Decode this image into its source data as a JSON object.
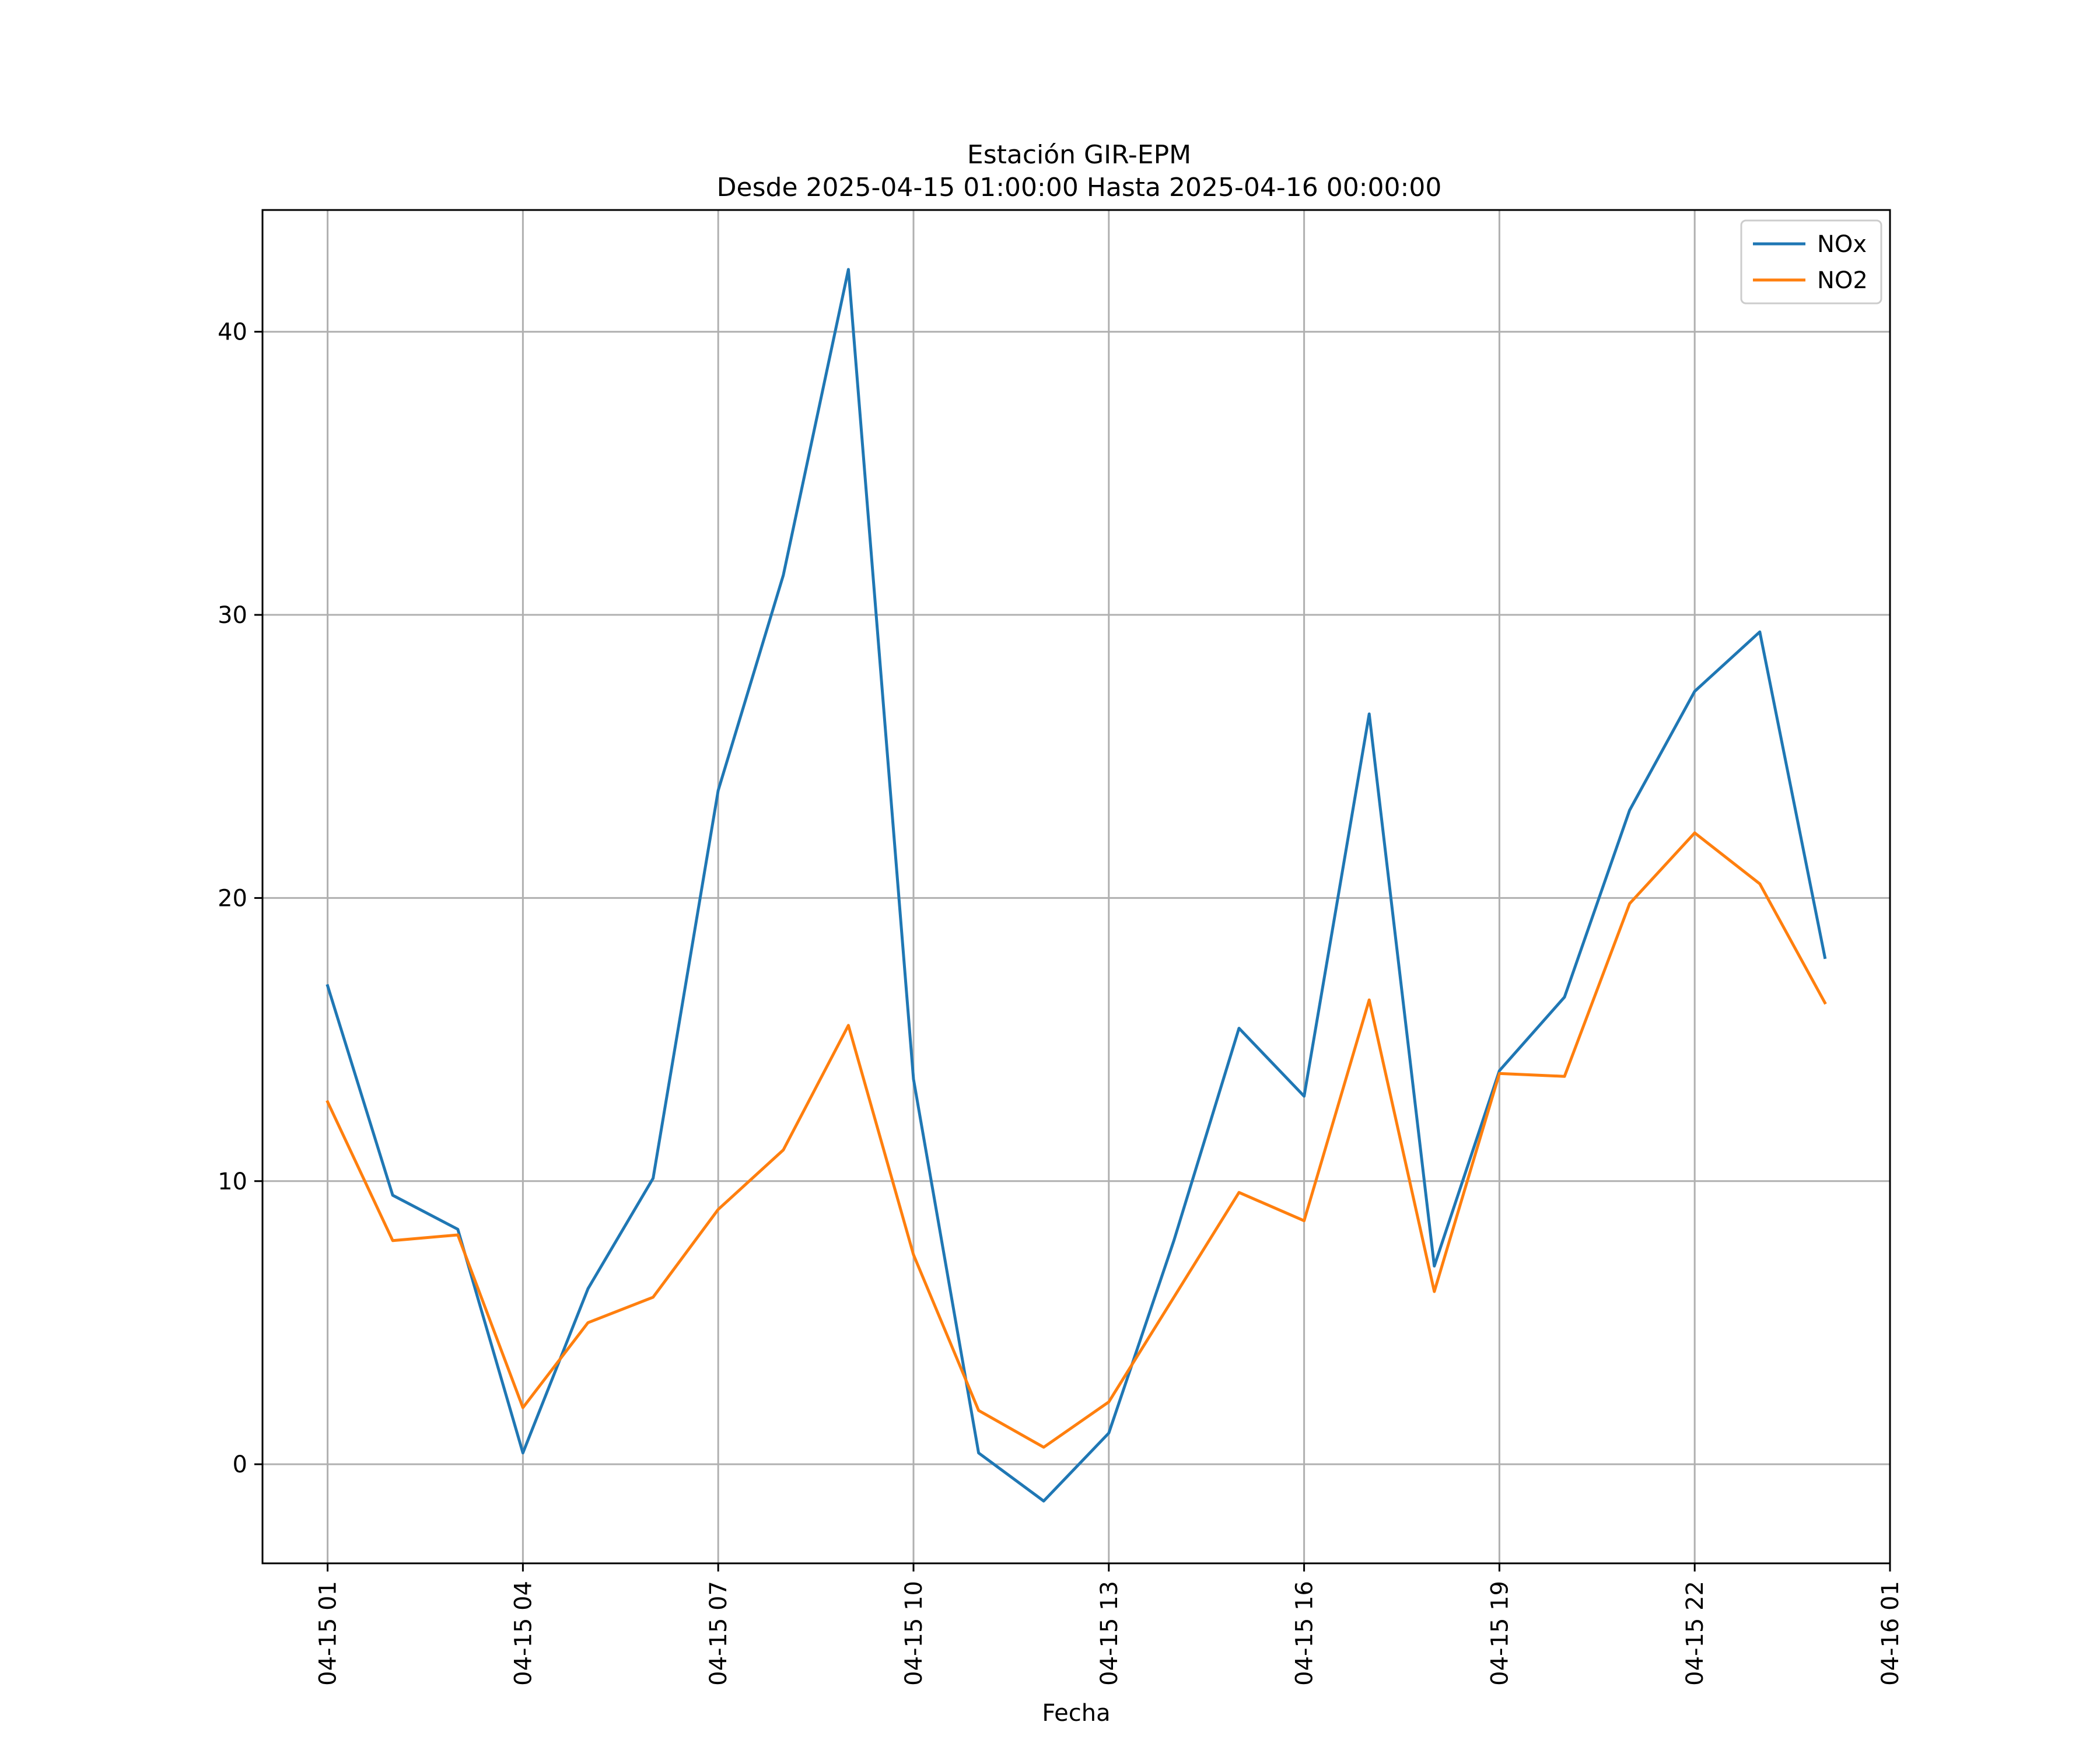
{
  "chart_data": {
    "type": "line",
    "title": "Estación GIR-EPM",
    "subtitle": "Desde 2025-04-15 01:00:00 Hasta 2025-04-16 00:00:00",
    "xlabel": "Fecha",
    "ylabel": "",
    "x": [
      "2025-04-15 01:00",
      "2025-04-15 02:00",
      "2025-04-15 03:00",
      "2025-04-15 04:00",
      "2025-04-15 05:00",
      "2025-04-15 06:00",
      "2025-04-15 07:00",
      "2025-04-15 08:00",
      "2025-04-15 09:00",
      "2025-04-15 10:00",
      "2025-04-15 11:00",
      "2025-04-15 12:00",
      "2025-04-15 13:00",
      "2025-04-15 14:00",
      "2025-04-15 15:00",
      "2025-04-15 16:00",
      "2025-04-15 17:00",
      "2025-04-15 18:00",
      "2025-04-15 19:00",
      "2025-04-15 20:00",
      "2025-04-15 21:00",
      "2025-04-15 22:00",
      "2025-04-15 23:00",
      "2025-04-16 00:00"
    ],
    "series": [
      {
        "name": "NOx",
        "color": "#1f77b4",
        "values": [
          16.9,
          9.5,
          8.3,
          0.4,
          6.2,
          10.1,
          23.8,
          31.4,
          42.2,
          13.6,
          0.4,
          -1.3,
          1.1,
          7.9,
          15.4,
          13.0,
          26.5,
          7.0,
          13.9,
          16.5,
          23.1,
          27.3,
          29.4,
          17.9
        ]
      },
      {
        "name": "NO2",
        "color": "#ff7f0e",
        "values": [
          12.8,
          7.9,
          8.1,
          2.0,
          5.0,
          5.9,
          9.0,
          11.1,
          15.5,
          7.4,
          1.9,
          0.6,
          2.2,
          5.9,
          9.6,
          8.6,
          16.4,
          6.1,
          13.8,
          13.7,
          19.8,
          22.3,
          20.5,
          16.3
        ]
      }
    ],
    "xticks": [
      "04-15 01",
      "04-15 04",
      "04-15 07",
      "04-15 10",
      "04-15 13",
      "04-15 16",
      "04-15 19",
      "04-15 22",
      "04-16 01"
    ],
    "yticks": [
      "0",
      "10",
      "20",
      "30",
      "40"
    ],
    "ytick_values": [
      0,
      10,
      20,
      30,
      40
    ],
    "ylim": [
      -3.5,
      44.3
    ],
    "xlim": [
      "2025-04-15 00:00",
      "2025-04-16 01:00"
    ],
    "grid": true,
    "legend_position": "top-right"
  }
}
